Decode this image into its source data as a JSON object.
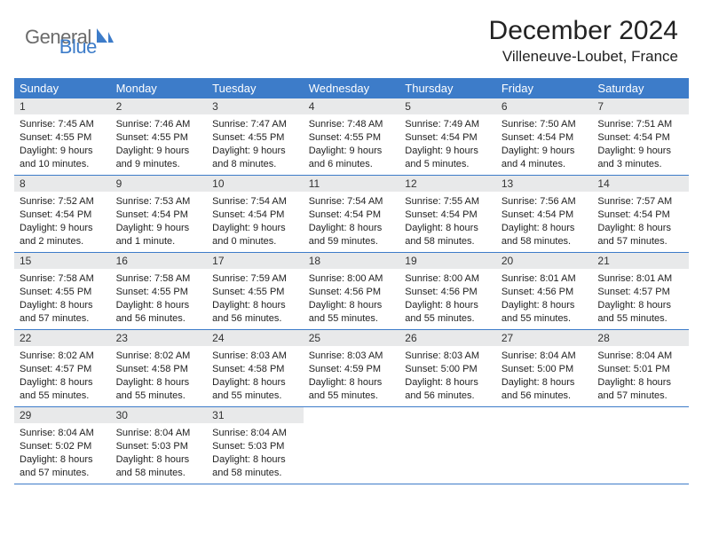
{
  "logo": {
    "text_general": "General",
    "text_blue": "Blue"
  },
  "title": "December 2024",
  "location": "Villeneuve-Loubet, France",
  "colors": {
    "header_bg": "#3d7cc9",
    "daynum_bg": "#e8e9ea",
    "logo_gray": "#6b6b6b",
    "logo_blue": "#3d7cc9",
    "text": "#222222",
    "page_bg": "#ffffff"
  },
  "weekdays": [
    "Sunday",
    "Monday",
    "Tuesday",
    "Wednesday",
    "Thursday",
    "Friday",
    "Saturday"
  ],
  "weeks": [
    [
      {
        "n": "1",
        "sunrise": "Sunrise: 7:45 AM",
        "sunset": "Sunset: 4:55 PM",
        "daylight": "Daylight: 9 hours and 10 minutes."
      },
      {
        "n": "2",
        "sunrise": "Sunrise: 7:46 AM",
        "sunset": "Sunset: 4:55 PM",
        "daylight": "Daylight: 9 hours and 9 minutes."
      },
      {
        "n": "3",
        "sunrise": "Sunrise: 7:47 AM",
        "sunset": "Sunset: 4:55 PM",
        "daylight": "Daylight: 9 hours and 8 minutes."
      },
      {
        "n": "4",
        "sunrise": "Sunrise: 7:48 AM",
        "sunset": "Sunset: 4:55 PM",
        "daylight": "Daylight: 9 hours and 6 minutes."
      },
      {
        "n": "5",
        "sunrise": "Sunrise: 7:49 AM",
        "sunset": "Sunset: 4:54 PM",
        "daylight": "Daylight: 9 hours and 5 minutes."
      },
      {
        "n": "6",
        "sunrise": "Sunrise: 7:50 AM",
        "sunset": "Sunset: 4:54 PM",
        "daylight": "Daylight: 9 hours and 4 minutes."
      },
      {
        "n": "7",
        "sunrise": "Sunrise: 7:51 AM",
        "sunset": "Sunset: 4:54 PM",
        "daylight": "Daylight: 9 hours and 3 minutes."
      }
    ],
    [
      {
        "n": "8",
        "sunrise": "Sunrise: 7:52 AM",
        "sunset": "Sunset: 4:54 PM",
        "daylight": "Daylight: 9 hours and 2 minutes."
      },
      {
        "n": "9",
        "sunrise": "Sunrise: 7:53 AM",
        "sunset": "Sunset: 4:54 PM",
        "daylight": "Daylight: 9 hours and 1 minute."
      },
      {
        "n": "10",
        "sunrise": "Sunrise: 7:54 AM",
        "sunset": "Sunset: 4:54 PM",
        "daylight": "Daylight: 9 hours and 0 minutes."
      },
      {
        "n": "11",
        "sunrise": "Sunrise: 7:54 AM",
        "sunset": "Sunset: 4:54 PM",
        "daylight": "Daylight: 8 hours and 59 minutes."
      },
      {
        "n": "12",
        "sunrise": "Sunrise: 7:55 AM",
        "sunset": "Sunset: 4:54 PM",
        "daylight": "Daylight: 8 hours and 58 minutes."
      },
      {
        "n": "13",
        "sunrise": "Sunrise: 7:56 AM",
        "sunset": "Sunset: 4:54 PM",
        "daylight": "Daylight: 8 hours and 58 minutes."
      },
      {
        "n": "14",
        "sunrise": "Sunrise: 7:57 AM",
        "sunset": "Sunset: 4:54 PM",
        "daylight": "Daylight: 8 hours and 57 minutes."
      }
    ],
    [
      {
        "n": "15",
        "sunrise": "Sunrise: 7:58 AM",
        "sunset": "Sunset: 4:55 PM",
        "daylight": "Daylight: 8 hours and 57 minutes."
      },
      {
        "n": "16",
        "sunrise": "Sunrise: 7:58 AM",
        "sunset": "Sunset: 4:55 PM",
        "daylight": "Daylight: 8 hours and 56 minutes."
      },
      {
        "n": "17",
        "sunrise": "Sunrise: 7:59 AM",
        "sunset": "Sunset: 4:55 PM",
        "daylight": "Daylight: 8 hours and 56 minutes."
      },
      {
        "n": "18",
        "sunrise": "Sunrise: 8:00 AM",
        "sunset": "Sunset: 4:56 PM",
        "daylight": "Daylight: 8 hours and 55 minutes."
      },
      {
        "n": "19",
        "sunrise": "Sunrise: 8:00 AM",
        "sunset": "Sunset: 4:56 PM",
        "daylight": "Daylight: 8 hours and 55 minutes."
      },
      {
        "n": "20",
        "sunrise": "Sunrise: 8:01 AM",
        "sunset": "Sunset: 4:56 PM",
        "daylight": "Daylight: 8 hours and 55 minutes."
      },
      {
        "n": "21",
        "sunrise": "Sunrise: 8:01 AM",
        "sunset": "Sunset: 4:57 PM",
        "daylight": "Daylight: 8 hours and 55 minutes."
      }
    ],
    [
      {
        "n": "22",
        "sunrise": "Sunrise: 8:02 AM",
        "sunset": "Sunset: 4:57 PM",
        "daylight": "Daylight: 8 hours and 55 minutes."
      },
      {
        "n": "23",
        "sunrise": "Sunrise: 8:02 AM",
        "sunset": "Sunset: 4:58 PM",
        "daylight": "Daylight: 8 hours and 55 minutes."
      },
      {
        "n": "24",
        "sunrise": "Sunrise: 8:03 AM",
        "sunset": "Sunset: 4:58 PM",
        "daylight": "Daylight: 8 hours and 55 minutes."
      },
      {
        "n": "25",
        "sunrise": "Sunrise: 8:03 AM",
        "sunset": "Sunset: 4:59 PM",
        "daylight": "Daylight: 8 hours and 55 minutes."
      },
      {
        "n": "26",
        "sunrise": "Sunrise: 8:03 AM",
        "sunset": "Sunset: 5:00 PM",
        "daylight": "Daylight: 8 hours and 56 minutes."
      },
      {
        "n": "27",
        "sunrise": "Sunrise: 8:04 AM",
        "sunset": "Sunset: 5:00 PM",
        "daylight": "Daylight: 8 hours and 56 minutes."
      },
      {
        "n": "28",
        "sunrise": "Sunrise: 8:04 AM",
        "sunset": "Sunset: 5:01 PM",
        "daylight": "Daylight: 8 hours and 57 minutes."
      }
    ],
    [
      {
        "n": "29",
        "sunrise": "Sunrise: 8:04 AM",
        "sunset": "Sunset: 5:02 PM",
        "daylight": "Daylight: 8 hours and 57 minutes."
      },
      {
        "n": "30",
        "sunrise": "Sunrise: 8:04 AM",
        "sunset": "Sunset: 5:03 PM",
        "daylight": "Daylight: 8 hours and 58 minutes."
      },
      {
        "n": "31",
        "sunrise": "Sunrise: 8:04 AM",
        "sunset": "Sunset: 5:03 PM",
        "daylight": "Daylight: 8 hours and 58 minutes."
      },
      {
        "empty": true
      },
      {
        "empty": true
      },
      {
        "empty": true
      },
      {
        "empty": true
      }
    ]
  ]
}
